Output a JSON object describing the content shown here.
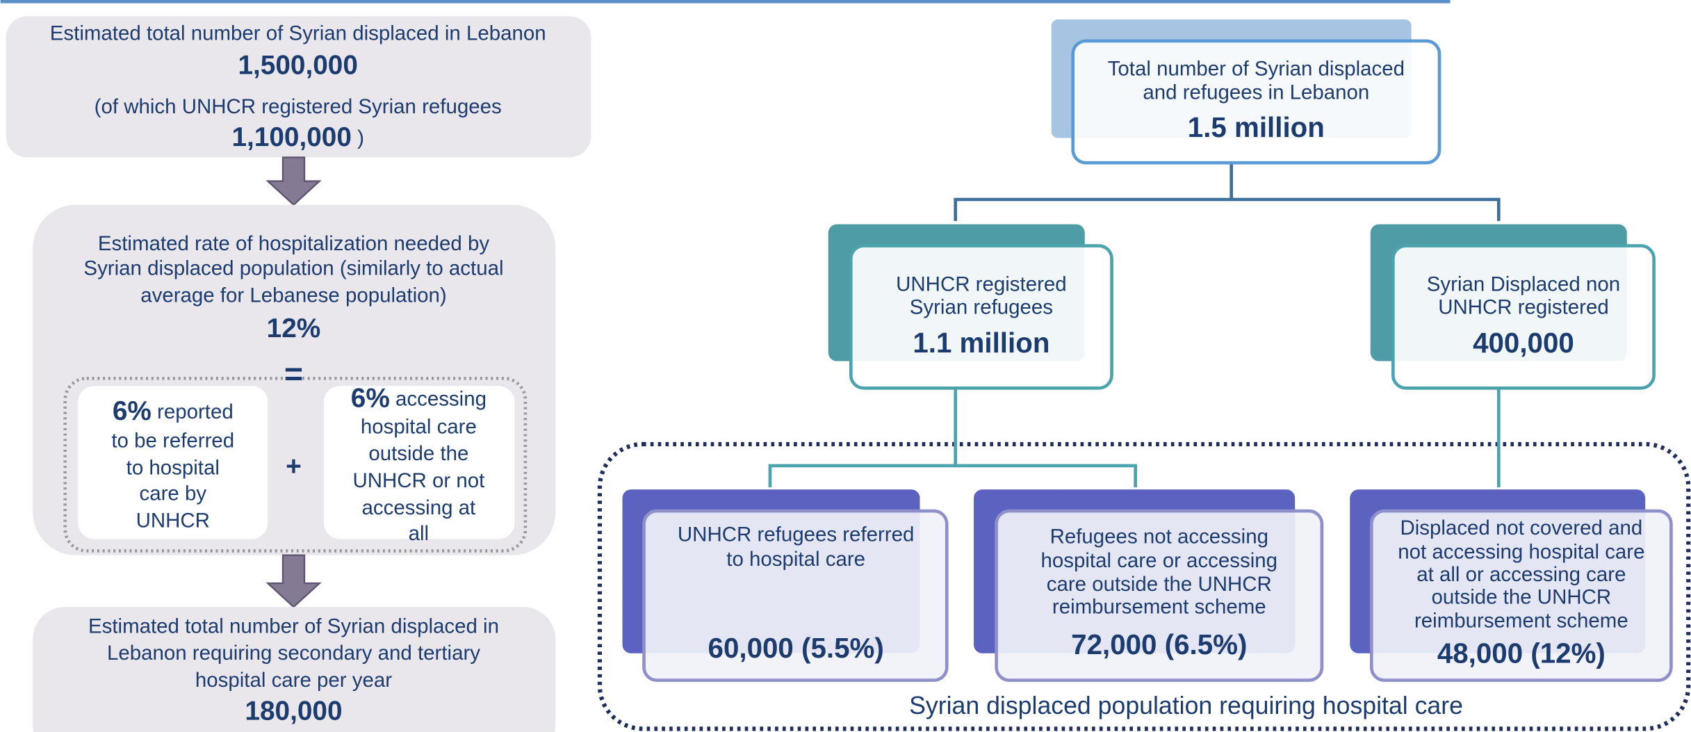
{
  "left_flow": {
    "total": {
      "label": "Estimated total number of Syrian displaced in Lebanon",
      "value": "1,500,000",
      "sub_label": "(of which UNHCR registered Syrian refugees",
      "sub_value": "1,100,000",
      "sub_close": ")"
    },
    "rate": {
      "label_lines": [
        "Estimated rate of hospitalization needed by",
        "Syrian displaced population (similarly to actual",
        "average for Lebanese population)"
      ],
      "value": "12%",
      "equals": "=",
      "plus": "+",
      "parts": [
        {
          "value": "6%",
          "first_line": "reported",
          "label_lines": [
            "to be referred",
            "to hospital",
            "care by",
            "UNHCR"
          ]
        },
        {
          "value": "6%",
          "first_line": "accessing",
          "label_lines": [
            "hospital care",
            "outside the",
            "UNHCR or not",
            "accessing at",
            "all"
          ]
        }
      ]
    },
    "result": {
      "label_lines": [
        "Estimated total number of Syrian displaced in",
        "Lebanon requiring secondary and tertiary",
        "hospital care per year"
      ],
      "value": "180,000"
    }
  },
  "tree": {
    "root": {
      "label_lines": [
        "Total number of Syrian displaced",
        "and refugees in Lebanon"
      ],
      "value": "1.5 million"
    },
    "children": [
      {
        "label_lines": [
          "UNHCR registered",
          "Syrian refugees"
        ],
        "value": "1.1 million"
      },
      {
        "label_lines": [
          "Syrian Displaced non",
          "UNHCR registered"
        ],
        "value": "400,000"
      }
    ],
    "leaves": [
      {
        "label_lines": [
          "UNHCR refugees referred",
          "to hospital care"
        ],
        "value": "60,000 (5.5%)"
      },
      {
        "label_lines": [
          "Refugees not accessing",
          "hospital care or accessing",
          "care outside the UNHCR",
          "reimbursement scheme"
        ],
        "value": "72,000 (6.5%)"
      },
      {
        "label_lines": [
          "Displaced not covered and",
          "not accessing hospital care",
          "at all or accessing care",
          "outside the UNHCR",
          "reimbursement scheme"
        ],
        "value": "48,000 (12%)"
      }
    ],
    "group_label": "Syrian displaced population requiring hospital care"
  }
}
